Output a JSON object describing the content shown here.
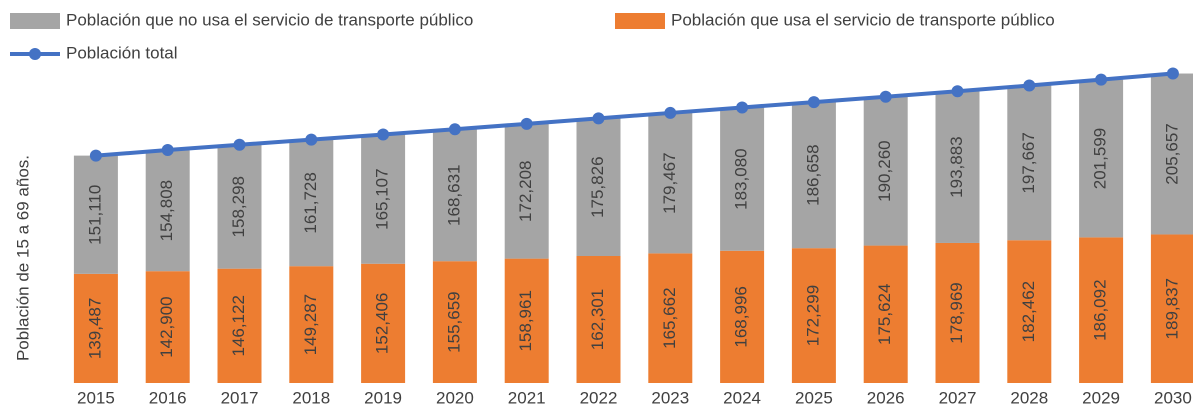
{
  "chart_data": {
    "type": "bar",
    "y_label": "Población de 15 a 69 años.",
    "categories": [
      "2015",
      "2016",
      "2017",
      "2018",
      "2019",
      "2020",
      "2021",
      "2022",
      "2023",
      "2024",
      "2025",
      "2026",
      "2027",
      "2028",
      "2029",
      "2030"
    ],
    "ylim": [
      0,
      400000
    ],
    "series": [
      {
        "name": "Población que no usa el servicio de transporte público",
        "color": "#a5a5a5",
        "values": [
          151110,
          154808,
          158298,
          161728,
          165107,
          168631,
          172208,
          175826,
          179467,
          183080,
          186658,
          190260,
          193883,
          197667,
          201599,
          205657
        ],
        "value_labels": [
          "151,110",
          "154,808",
          "158,298",
          "161,728",
          "165,107",
          "168,631",
          "172,208",
          "175,826",
          "179,467",
          "183,080",
          "186,658",
          "190,260",
          "193,883",
          "197,667",
          "201,599",
          "205,657"
        ]
      },
      {
        "name": "Población que usa el servicio de transporte público",
        "color": "#ed7d31",
        "values": [
          139487,
          142900,
          146122,
          149287,
          152406,
          155659,
          158961,
          162301,
          165662,
          168996,
          172299,
          175624,
          178969,
          182462,
          186092,
          189837
        ],
        "value_labels": [
          "139,487",
          "142,900",
          "146,122",
          "149,287",
          "152,406",
          "155,659",
          "158,961",
          "162,301",
          "165,662",
          "168,996",
          "172,299",
          "175,624",
          "178,969",
          "182,462",
          "186,092",
          "189,837"
        ]
      },
      {
        "name": "Población total",
        "color": "#4472c4",
        "type": "line",
        "values": [
          290597,
          297708,
          304420,
          311015,
          317513,
          324290,
          331169,
          338127,
          345129,
          352076,
          358957,
          365884,
          372852,
          380129,
          387691,
          395494
        ]
      }
    ]
  }
}
